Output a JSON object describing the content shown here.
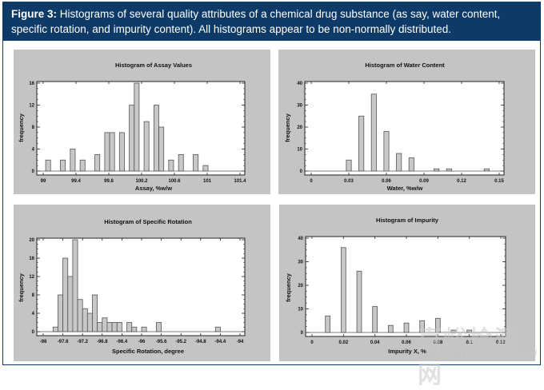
{
  "caption": {
    "label": "Figure 3:",
    "text": " Histograms of several quality attributes of a chemical drug substance (as say, water content, specific rotation, and impurity content). All histograms appear to be non-normally distributed."
  },
  "watermark": {
    "cn": "嘉峪检测网",
    "en": "AnyTesting.com"
  },
  "chart_data": [
    {
      "type": "bar",
      "title": "Histogram of Assay Values",
      "xlabel": "Assay, %w/w",
      "ylabel": "frequency",
      "xlim": [
        99,
        101.4
      ],
      "ylim": [
        0,
        16
      ],
      "xticks": [
        99,
        99.4,
        99.8,
        100.2,
        100.6,
        101,
        101.4
      ],
      "xtick_labels": [
        "99",
        "99.4",
        "99.8",
        "100.2",
        "100.6",
        "101",
        "101.4"
      ],
      "yticks": [
        0,
        4,
        8,
        12,
        16
      ],
      "bin_width": 0.06,
      "x": [
        99.06,
        99.24,
        99.36,
        99.48,
        99.66,
        99.78,
        99.84,
        99.96,
        100.08,
        100.14,
        100.26,
        100.38,
        100.44,
        100.56,
        100.68,
        100.86,
        100.98
      ],
      "values": [
        2,
        2,
        4,
        2,
        3,
        7,
        7,
        7,
        12,
        16,
        9,
        12,
        8,
        2,
        3,
        3,
        1
      ],
      "grid": false,
      "legend": "none"
    },
    {
      "type": "bar",
      "title": "Histogram of Water Content",
      "xlabel": "Water, %w/w",
      "ylabel": "frequency",
      "xlim": [
        0,
        0.15
      ],
      "ylim": [
        0,
        40
      ],
      "xticks": [
        0,
        0.03,
        0.06,
        0.09,
        0.12,
        0.15
      ],
      "xtick_labels": [
        "0",
        "0.03",
        "0.06",
        "0.09",
        "0.12",
        "0.15"
      ],
      "yticks": [
        0,
        10,
        20,
        30,
        40
      ],
      "bin_width": 0.004,
      "x": [
        0.03,
        0.04,
        0.05,
        0.06,
        0.07,
        0.08,
        0.1,
        0.11,
        0.14
      ],
      "values": [
        5,
        25,
        35,
        18,
        8,
        6,
        1,
        1,
        1
      ],
      "grid": false,
      "legend": "none"
    },
    {
      "type": "bar",
      "title": "Histogram of Specific Rotation",
      "xlabel": "Specific Rotation, degree",
      "ylabel": "frequency",
      "xlim": [
        -98,
        -94
      ],
      "ylim": [
        0,
        20
      ],
      "xticks": [
        -98,
        -97.6,
        -97.2,
        -96.8,
        -96.4,
        -96,
        -95.6,
        -95.2,
        -94.8,
        -94.4,
        -94
      ],
      "xtick_labels": [
        "-98",
        "-97.6",
        "-97.2",
        "-96.8",
        "-96.4",
        "-96",
        "-95.6",
        "-95.2",
        "-94.8",
        "-94.4",
        "-94"
      ],
      "yticks": [
        0,
        4,
        8,
        12,
        16,
        20
      ],
      "bin_width": 0.1,
      "x": [
        -97.75,
        -97.65,
        -97.55,
        -97.45,
        -97.35,
        -97.25,
        -97.15,
        -97.05,
        -96.95,
        -96.85,
        -96.75,
        -96.65,
        -96.55,
        -96.45,
        -96.25,
        -96.15,
        -95.95,
        -95.65,
        -94.45
      ],
      "values": [
        1,
        8,
        16,
        12,
        20,
        7,
        5,
        4,
        8,
        2,
        3,
        2,
        2,
        2,
        2,
        1,
        1,
        2,
        1
      ],
      "grid": false,
      "legend": "none"
    },
    {
      "type": "bar",
      "title": "Histogram of Impurity",
      "xlabel": "Impurity X, %",
      "ylabel": "frequency",
      "xlim": [
        0,
        0.12
      ],
      "ylim": [
        0,
        40
      ],
      "xticks": [
        0,
        0.02,
        0.04,
        0.06,
        0.08,
        0.1,
        0.12
      ],
      "xtick_labels": [
        "0",
        "0.02",
        "0.04",
        "0.06",
        "0.08",
        "0.1",
        "0.12"
      ],
      "yticks": [
        0,
        10,
        20,
        30,
        40
      ],
      "bin_width": 0.003,
      "x": [
        0.01,
        0.02,
        0.03,
        0.04,
        0.05,
        0.06,
        0.07,
        0.08,
        0.09,
        0.1
      ],
      "values": [
        7,
        36,
        26,
        11,
        3,
        4,
        5,
        6,
        1,
        1
      ],
      "grid": false,
      "legend": "none"
    }
  ]
}
